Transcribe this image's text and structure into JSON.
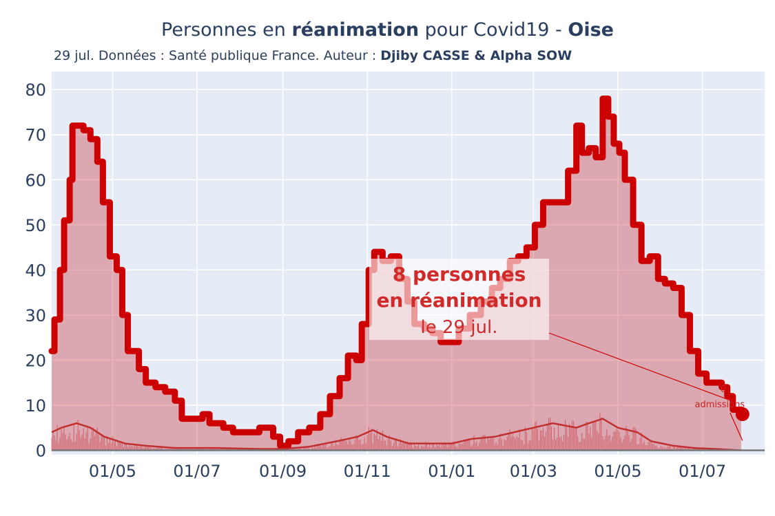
{
  "header": {
    "title_pre": "Personnes en ",
    "title_bold": "réanimation",
    "title_mid": " pour Covid19 - ",
    "title_region": "Oise",
    "subtitle_pre": "29 jul. Données : Santé publique France. Auteur : ",
    "subtitle_authors": "Djiby CASSE & Alpha SOW"
  },
  "annotation": {
    "line1": "8 personnes",
    "line2": "en réanimation",
    "line3": "le 29 jul.",
    "admissions_label": "admissions",
    "admissions_value": "0"
  },
  "colors": {
    "main_line": "#cc0000",
    "fill": "rgba(200,40,50,0.35)",
    "plot_bg": "#e5ecf6",
    "grid": "#ffffff",
    "text": "#2a3f5f"
  },
  "chart_data": {
    "type": "area",
    "title": "Personnes en réanimation pour Covid19 - Oise",
    "ylim": [
      -1,
      84
    ],
    "yticks": [
      0,
      10,
      20,
      30,
      40,
      50,
      60,
      70,
      80
    ],
    "xlim": [
      "2020-03-18",
      "2021-08-15"
    ],
    "xticks": [
      {
        "date": "2020-05-01",
        "label": "01/05"
      },
      {
        "date": "2020-07-01",
        "label": "01/07"
      },
      {
        "date": "2020-09-01",
        "label": "01/09"
      },
      {
        "date": "2020-11-01",
        "label": "01/11"
      },
      {
        "date": "2021-01-01",
        "label": "01/01"
      },
      {
        "date": "2021-03-01",
        "label": "01/03"
      },
      {
        "date": "2021-05-01",
        "label": "01/05"
      },
      {
        "date": "2021-07-01",
        "label": "01/07"
      }
    ],
    "series": [
      {
        "name": "",
        "points": [
          [
            "2020-03-18",
            22
          ],
          [
            "2020-03-20",
            29
          ],
          [
            "2020-03-24",
            40
          ],
          [
            "2020-03-27",
            51
          ],
          [
            "2020-03-31",
            60
          ],
          [
            "2020-04-02",
            72
          ],
          [
            "2020-04-06",
            72
          ],
          [
            "2020-04-10",
            71
          ],
          [
            "2020-04-15",
            69
          ],
          [
            "2020-04-20",
            64
          ],
          [
            "2020-04-24",
            55
          ],
          [
            "2020-04-29",
            43
          ],
          [
            "2020-05-04",
            40
          ],
          [
            "2020-05-08",
            30
          ],
          [
            "2020-05-12",
            22
          ],
          [
            "2020-05-16",
            22
          ],
          [
            "2020-05-20",
            18
          ],
          [
            "2020-05-25",
            15
          ],
          [
            "2020-06-01",
            14
          ],
          [
            "2020-06-08",
            13
          ],
          [
            "2020-06-15",
            11
          ],
          [
            "2020-06-20",
            7
          ],
          [
            "2020-06-30",
            7
          ],
          [
            "2020-07-05",
            8
          ],
          [
            "2020-07-10",
            6
          ],
          [
            "2020-07-20",
            5
          ],
          [
            "2020-07-27",
            4
          ],
          [
            "2020-08-05",
            4
          ],
          [
            "2020-08-15",
            5
          ],
          [
            "2020-08-25",
            3
          ],
          [
            "2020-08-30",
            1
          ],
          [
            "2020-09-05",
            2
          ],
          [
            "2020-09-12",
            4
          ],
          [
            "2020-09-20",
            5
          ],
          [
            "2020-09-28",
            8
          ],
          [
            "2020-10-05",
            12
          ],
          [
            "2020-10-12",
            16
          ],
          [
            "2020-10-18",
            21
          ],
          [
            "2020-10-24",
            20
          ],
          [
            "2020-10-28",
            28
          ],
          [
            "2020-11-02",
            40
          ],
          [
            "2020-11-06",
            44
          ],
          [
            "2020-11-12",
            42
          ],
          [
            "2020-11-18",
            43
          ],
          [
            "2020-11-24",
            38
          ],
          [
            "2020-11-30",
            33
          ],
          [
            "2020-12-05",
            28
          ],
          [
            "2020-12-12",
            27
          ],
          [
            "2020-12-18",
            26
          ],
          [
            "2020-12-24",
            24
          ],
          [
            "2020-12-31",
            24
          ],
          [
            "2021-01-06",
            27
          ],
          [
            "2021-01-14",
            30
          ],
          [
            "2021-01-22",
            33
          ],
          [
            "2021-01-30",
            36
          ],
          [
            "2021-02-05",
            38
          ],
          [
            "2021-02-12",
            42
          ],
          [
            "2021-02-18",
            43
          ],
          [
            "2021-02-24",
            45
          ],
          [
            "2021-03-02",
            50
          ],
          [
            "2021-03-08",
            55
          ],
          [
            "2021-03-14",
            55
          ],
          [
            "2021-03-20",
            55
          ],
          [
            "2021-03-26",
            62
          ],
          [
            "2021-04-01",
            72
          ],
          [
            "2021-04-05",
            66
          ],
          [
            "2021-04-10",
            67
          ],
          [
            "2021-04-15",
            65
          ],
          [
            "2021-04-20",
            78
          ],
          [
            "2021-04-24",
            74
          ],
          [
            "2021-04-28",
            68
          ],
          [
            "2021-05-02",
            66
          ],
          [
            "2021-05-06",
            60
          ],
          [
            "2021-05-12",
            50
          ],
          [
            "2021-05-18",
            42
          ],
          [
            "2021-05-24",
            43
          ],
          [
            "2021-05-30",
            38
          ],
          [
            "2021-06-04",
            37
          ],
          [
            "2021-06-10",
            36
          ],
          [
            "2021-06-16",
            30
          ],
          [
            "2021-06-22",
            22
          ],
          [
            "2021-06-28",
            17
          ],
          [
            "2021-07-04",
            15
          ],
          [
            "2021-07-10",
            15
          ],
          [
            "2021-07-15",
            14
          ],
          [
            "2021-07-19",
            12
          ],
          [
            "2021-07-23",
            9
          ],
          [
            "2021-07-29",
            8
          ]
        ]
      },
      {
        "name": "",
        "points": [
          [
            "2020-03-18",
            4
          ],
          [
            "2020-03-25",
            5
          ],
          [
            "2020-04-05",
            6
          ],
          [
            "2020-04-15",
            5
          ],
          [
            "2020-04-25",
            3
          ],
          [
            "2020-05-10",
            1.5
          ],
          [
            "2020-05-25",
            1
          ],
          [
            "2020-06-15",
            0.5
          ],
          [
            "2020-07-15",
            0.5
          ],
          [
            "2020-08-15",
            0.3
          ],
          [
            "2020-09-01",
            0.3
          ],
          [
            "2020-09-20",
            0.8
          ],
          [
            "2020-10-10",
            2
          ],
          [
            "2020-10-25",
            3
          ],
          [
            "2020-11-05",
            4.5
          ],
          [
            "2020-11-15",
            3
          ],
          [
            "2020-12-01",
            1.5
          ],
          [
            "2020-12-15",
            1.5
          ],
          [
            "2021-01-01",
            1.5
          ],
          [
            "2021-01-15",
            2.5
          ],
          [
            "2021-02-01",
            3
          ],
          [
            "2021-02-15",
            4
          ],
          [
            "2021-03-01",
            5
          ],
          [
            "2021-03-15",
            6
          ],
          [
            "2021-04-01",
            5
          ],
          [
            "2021-04-10",
            6
          ],
          [
            "2021-04-20",
            7
          ],
          [
            "2021-05-01",
            5
          ],
          [
            "2021-05-15",
            4
          ],
          [
            "2021-05-25",
            2
          ],
          [
            "2021-06-10",
            1
          ],
          [
            "2021-06-25",
            0.5
          ],
          [
            "2021-07-10",
            0.3
          ],
          [
            "2021-07-29",
            0
          ]
        ]
      }
    ]
  }
}
